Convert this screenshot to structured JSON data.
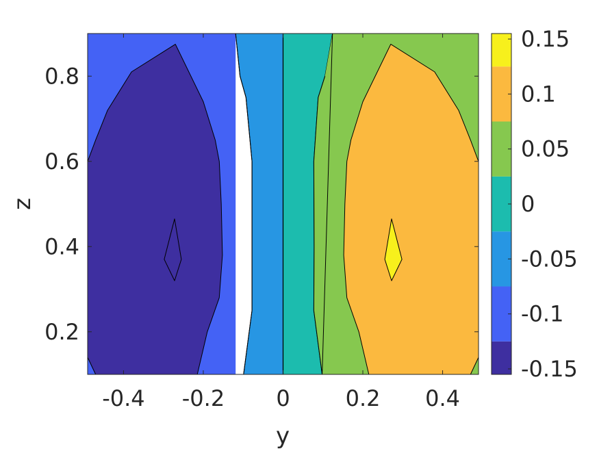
{
  "chart_data": {
    "type": "contour",
    "xlabel": "y",
    "ylabel": "z",
    "xlim": [
      -0.49,
      0.49
    ],
    "ylim": [
      0.1,
      0.9
    ],
    "xticks": [
      -0.4,
      -0.2,
      0,
      0.2,
      0.4
    ],
    "xtick_labels": [
      "-0.4",
      "-0.2",
      "0",
      "0.2",
      "0.4"
    ],
    "yticks": [
      0.2,
      0.4,
      0.6,
      0.8
    ],
    "ytick_labels": [
      "0.2",
      "0.4",
      "0.6",
      "0.8"
    ],
    "grid": false,
    "colormap": "parula",
    "colorbar": {
      "position": "right",
      "range": [
        -0.155,
        0.155
      ],
      "ticks": [
        -0.15,
        -0.1,
        -0.05,
        0,
        0.05,
        0.1,
        0.15
      ],
      "tick_labels": [
        "-0.15",
        "-0.1",
        "-0.05",
        "0",
        "0.05",
        "0.1",
        "0.15"
      ]
    },
    "levels": [
      {
        "level": -0.15,
        "color": "#3e2fa0"
      },
      {
        "level": -0.1,
        "color": "#4462f5"
      },
      {
        "level": -0.05,
        "color": "#2796e3"
      },
      {
        "level": 0,
        "color": "#1cbcae"
      },
      {
        "level": 0.05,
        "color": "#86c84f"
      },
      {
        "level": 0.1,
        "color": "#fbb93f"
      },
      {
        "level": 0.15,
        "color": "#f7f01c"
      }
    ],
    "regions": [
      {
        "name": "level-neg-0.10",
        "color": "#4462f5",
        "points": [
          [
            -0.49,
            0.9
          ],
          [
            -0.119,
            0.9
          ],
          [
            -0.119,
            0.1
          ],
          [
            -0.49,
            0.1
          ]
        ]
      },
      {
        "name": "level-neg-0.05",
        "color": "#2796e3",
        "points": [
          [
            -0.119,
            0.9
          ],
          [
            0,
            0.9
          ],
          [
            0,
            0.1
          ],
          [
            -0.099,
            0.1
          ],
          [
            -0.078,
            0.25
          ],
          [
            -0.078,
            0.4
          ],
          [
            -0.078,
            0.6
          ],
          [
            -0.093,
            0.75
          ],
          [
            -0.108,
            0.8
          ],
          [
            -0.119,
            0.9
          ]
        ]
      },
      {
        "name": "level-0.00",
        "color": "#1cbcae",
        "points": [
          [
            0,
            0.9
          ],
          [
            0.124,
            0.9
          ],
          [
            0.105,
            0.8
          ],
          [
            0.088,
            0.75
          ],
          [
            0.077,
            0.6
          ],
          [
            0.078,
            0.4
          ],
          [
            0.077,
            0.25
          ],
          [
            0.098,
            0.1
          ],
          [
            0,
            0.1
          ]
        ]
      },
      {
        "name": "level-0.05",
        "color": "#86c84f",
        "points": [
          [
            0.124,
            0.9
          ],
          [
            0.49,
            0.9
          ],
          [
            0.49,
            0.1
          ],
          [
            0.098,
            0.1
          ],
          [
            0.077,
            0.25
          ],
          [
            0.078,
            0.4
          ],
          [
            0.077,
            0.6
          ],
          [
            0.088,
            0.75
          ],
          [
            0.105,
            0.8
          ]
        ]
      },
      {
        "name": "level-neg-0.15-region",
        "color": "#3e2fa0",
        "points": [
          [
            -0.49,
            0.6
          ],
          [
            -0.47,
            0.65
          ],
          [
            -0.44,
            0.72
          ],
          [
            -0.38,
            0.81
          ],
          [
            -0.27,
            0.875
          ],
          [
            -0.2,
            0.74
          ],
          [
            -0.17,
            0.65
          ],
          [
            -0.16,
            0.6
          ],
          [
            -0.155,
            0.5
          ],
          [
            -0.152,
            0.38
          ],
          [
            -0.16,
            0.28
          ],
          [
            -0.19,
            0.2
          ],
          [
            -0.215,
            0.1
          ],
          [
            -0.47,
            0.1
          ],
          [
            -0.49,
            0.14
          ]
        ]
      },
      {
        "name": "level-0.10-region",
        "color": "#fbb93f",
        "points": [
          [
            0.49,
            0.6
          ],
          [
            0.47,
            0.65
          ],
          [
            0.44,
            0.72
          ],
          [
            0.38,
            0.81
          ],
          [
            0.27,
            0.875
          ],
          [
            0.2,
            0.74
          ],
          [
            0.17,
            0.65
          ],
          [
            0.16,
            0.6
          ],
          [
            0.155,
            0.5
          ],
          [
            0.152,
            0.38
          ],
          [
            0.16,
            0.28
          ],
          [
            0.19,
            0.2
          ],
          [
            0.215,
            0.1
          ],
          [
            0.47,
            0.1
          ],
          [
            0.49,
            0.14
          ]
        ]
      },
      {
        "name": "min-spot-region",
        "color": "#3e2fa0",
        "points": [
          [
            -0.272,
            0.465
          ],
          [
            -0.255,
            0.37
          ],
          [
            -0.272,
            0.32
          ],
          [
            -0.298,
            0.37
          ]
        ]
      },
      {
        "name": "max-spot-region",
        "color": "#f7f01c",
        "points": [
          [
            0.272,
            0.465
          ],
          [
            0.298,
            0.37
          ],
          [
            0.272,
            0.32
          ],
          [
            0.255,
            0.37
          ]
        ]
      }
    ]
  }
}
